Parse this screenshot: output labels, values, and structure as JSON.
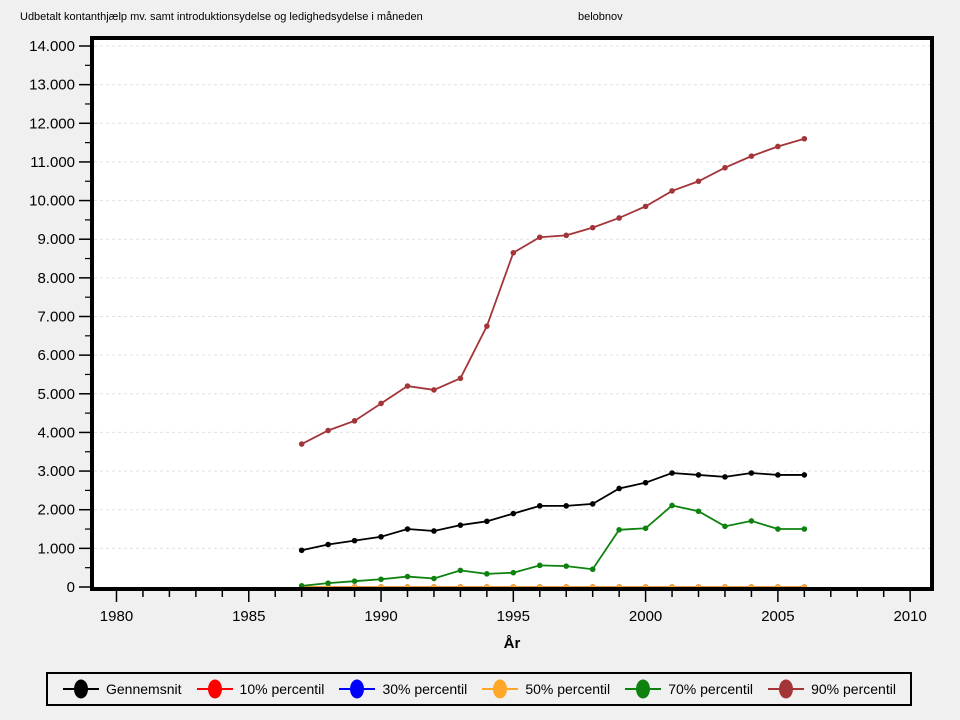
{
  "header": {
    "title": "Udbetalt kontanthjælp mv. samt introduktionsydelse og ledighedsydelse i måneden",
    "variable_label": "belobnov"
  },
  "chart_data": {
    "type": "line",
    "title": "Udbetalt kontanthjælp mv. samt introduktionsydelse og ledighedsydelse i måneden",
    "subtitle": "belobnov",
    "xlabel": "År",
    "ylabel": "",
    "xlim": [
      1979.15,
      2010.75
    ],
    "ylim": [
      0,
      14000
    ],
    "grid": "horizontal-dashed",
    "legend_position": "bottom",
    "x": [
      1987,
      1988,
      1989,
      1990,
      1991,
      1992,
      1993,
      1994,
      1995,
      1996,
      1997,
      1998,
      1999,
      2000,
      2001,
      2002,
      2003,
      2004,
      2005,
      2006
    ],
    "series": [
      {
        "name": "Gennemsnit",
        "color": "#000000",
        "values": [
          950,
          1100,
          1200,
          1300,
          1500,
          1450,
          1600,
          1700,
          1900,
          2100,
          2100,
          2150,
          2550,
          2700,
          2950,
          2900,
          2850,
          2950,
          2900,
          2900
        ]
      },
      {
        "name": "10% percentil",
        "color": "#FF0000",
        "values": [
          0,
          0,
          0,
          0,
          0,
          0,
          0,
          0,
          0,
          0,
          0,
          0,
          0,
          0,
          0,
          0,
          0,
          0,
          0,
          0
        ]
      },
      {
        "name": "30% percentil",
        "color": "#0000FF",
        "values": [
          0,
          0,
          0,
          0,
          0,
          0,
          0,
          0,
          0,
          0,
          0,
          0,
          0,
          0,
          0,
          0,
          0,
          0,
          0,
          0
        ]
      },
      {
        "name": "50% percentil",
        "color": "#FFA728",
        "values": [
          0,
          0,
          0,
          0,
          0,
          0,
          0,
          0,
          0,
          0,
          0,
          0,
          0,
          0,
          0,
          0,
          0,
          0,
          0,
          0
        ]
      },
      {
        "name": "70% percentil",
        "color": "#0E820E",
        "values": [
          30,
          100,
          150,
          200,
          270,
          220,
          430,
          340,
          370,
          560,
          540,
          460,
          1480,
          1520,
          2110,
          1960,
          1570,
          1710,
          1500,
          1500
        ]
      },
      {
        "name": "90% percentil",
        "color": "#A33539",
        "values": [
          3700,
          4050,
          4300,
          4750,
          5200,
          5100,
          5400,
          6750,
          8650,
          9050,
          9100,
          9300,
          9550,
          9850,
          10250,
          10500,
          10850,
          11150,
          11400,
          11600
        ]
      }
    ],
    "x_major_ticks": [
      1980,
      1985,
      1990,
      1995,
      2000,
      2005,
      2010
    ],
    "x_tick_labels": [
      "1980",
      "1985",
      "1990",
      "1995",
      "2000",
      "2005",
      "2010"
    ],
    "x_minor_step": 1,
    "y_major_ticks": [
      0,
      1000,
      2000,
      3000,
      4000,
      5000,
      6000,
      7000,
      8000,
      9000,
      10000,
      11000,
      12000,
      13000,
      14000
    ],
    "y_tick_labels": [
      "0",
      "1.000",
      "2.000",
      "3.000",
      "4.000",
      "5.000",
      "6.000",
      "7.000",
      "8.000",
      "9.000",
      "10.000",
      "11.000",
      "12.000",
      "13.000",
      "14.000"
    ],
    "y_minor_step": 500
  }
}
